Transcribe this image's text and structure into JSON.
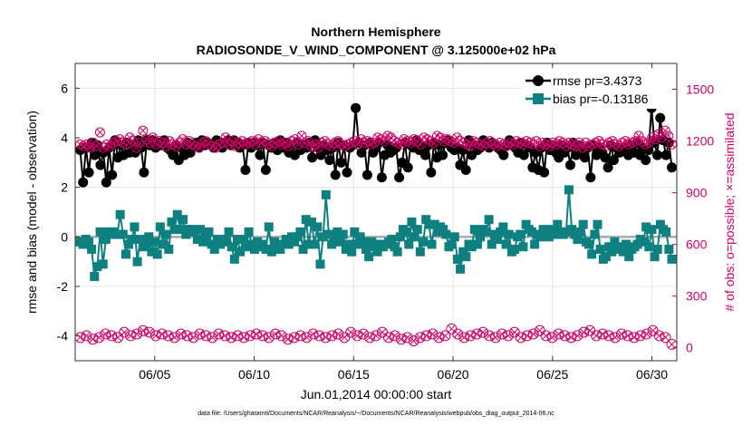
{
  "title_line1": "Northern Hemisphere",
  "title_line2": "RADIOSONDE_V_WIND_COMPONENT @ 3.125000e+02 hPa",
  "footer": "data file: /Users/gharamti/Documents/NCAR/Reanalysis/~/Documents/NCAR/Reanalysis/webpub/obs_diag_output_2014-06.nc",
  "chart_data": {
    "type": "line",
    "title": "Northern Hemisphere RADIOSONDE_V_WIND_COMPONENT @ 3.125000e+02 hPa",
    "xlabel": "Jun.01,2014 00:00:00 start",
    "ylabel": "rmse and bias (model - observation)",
    "ylabel_right": "# of obs: o=possible; ×=assimilated",
    "xlim": [
      1.0,
      31.25
    ],
    "ylim": [
      -5,
      7
    ],
    "ylim_right": [
      -75,
      1650
    ],
    "x_ticks": [
      5,
      10,
      15,
      20,
      25,
      30
    ],
    "x_tick_labels": [
      "06/05",
      "06/10",
      "06/15",
      "06/20",
      "06/25",
      "06/30"
    ],
    "y_ticks": [
      -4,
      -2,
      0,
      2,
      4,
      6
    ],
    "y_tick_labels": [
      "-4",
      "-2",
      "0",
      "2",
      "4",
      "6"
    ],
    "y2_ticks": [
      0,
      300,
      600,
      900,
      1200,
      1500
    ],
    "y2_tick_labels": [
      "0",
      "300",
      "600",
      "900",
      "1200",
      "1500"
    ],
    "zero_line": 0,
    "legend": [
      "rmse pr=3.4373",
      "bias pr=-0.13186"
    ],
    "colors": {
      "rmse": "#000000",
      "bias": "#0f8080",
      "obs": "#cc0066",
      "zero": "#aaaaaa"
    },
    "series": [
      {
        "name": "rmse",
        "values": [
          3.5,
          2.2,
          3.6,
          2.6,
          3.8,
          3.3,
          3.7,
          2.9,
          3.4,
          2.2,
          3.6,
          2.5,
          3.9,
          3.2,
          3.7,
          3.3,
          3.8,
          3.4,
          3.7,
          3.4,
          3.9,
          3.6,
          2.6,
          3.9,
          3.7,
          3.9,
          3.6,
          3.8,
          3.7,
          3.9,
          3.6,
          3.5,
          3.3,
          3.7,
          3.1,
          3.6,
          3.3,
          3.8,
          3.4,
          3.7,
          3.8,
          3.6,
          3.9,
          3.7,
          3.8,
          3.7,
          3.6,
          3.9,
          3.7,
          3.6,
          3.8,
          3.9,
          3.7,
          3.9,
          3.8,
          3.6,
          3.7,
          2.7,
          3.8,
          3.6,
          3.8,
          3.7,
          3.3,
          3.8,
          2.7,
          3.7,
          3.6,
          3.8,
          3.5,
          3.9,
          3.6,
          3.8,
          3.4,
          3.7,
          3.3,
          3.8,
          3.5,
          3.7,
          3.6,
          3.8,
          3.2,
          3.9,
          3.6,
          3.3,
          3.7,
          3.5,
          3.1,
          3.6,
          2.5,
          3.8,
          3.0,
          3.7,
          2.6,
          3.6,
          3.7,
          5.2,
          3.8,
          3.4,
          3.7,
          2.5,
          3.8,
          3.4,
          3.6,
          3.8,
          2.4,
          3.3,
          3.7,
          3.4,
          3.5,
          3.6,
          2.4,
          3.0,
          3.8,
          2.8,
          3.7,
          3.6,
          3.9,
          3.5,
          3.6,
          3.3,
          3.7,
          2.6,
          3.8,
          3.2,
          3.7,
          3.3,
          3.8,
          3.9,
          3.6,
          3.5,
          3.6,
          2.9,
          3.5,
          2.7,
          3.9,
          3.3,
          3.7,
          3.5,
          3.6,
          3.9,
          3.7,
          3.6,
          3.8,
          3.7,
          3.6,
          3.5,
          3.3,
          3.7,
          3.9,
          3.7,
          3.6,
          3.4,
          3.8,
          3.3,
          3.7,
          3.6,
          2.8,
          3.4,
          2.7,
          3.6,
          2.6,
          3.8,
          3.5,
          3.7,
          3.4,
          3.2,
          3.7,
          3.4,
          3.6,
          2.9,
          3.8,
          3.3,
          3.7,
          3.4,
          3.2,
          3.6,
          2.4,
          3.7,
          3.3,
          3.6,
          3.4,
          3.2,
          2.8,
          3.7,
          3.1,
          3.6,
          3.4,
          3.5,
          3.6,
          3.3,
          3.7,
          3.4,
          3.8,
          3.3,
          3.6,
          3.1,
          3.5,
          5.2,
          3.8,
          3.3,
          4.8,
          3.9,
          3.3,
          3.8,
          2.8
        ]
      },
      {
        "name": "bias",
        "values": [
          -0.2,
          -0.3,
          -0.1,
          -0.2,
          -0.5,
          -1.6,
          -1.2,
          0.2,
          -1.1,
          -0.1,
          0.2,
          0.1,
          0.2,
          0.1,
          0.9,
          0.1,
          -0.7,
          -0.3,
          -0.1,
          0.4,
          -1.0,
          -0.1,
          -0.4,
          -0.3,
          0.0,
          -0.6,
          -0.2,
          -0.7,
          0.4,
          -0.3,
          0.1,
          -0.5,
          0.6,
          0.3,
          0.9,
          0.3,
          0.7,
          0.1,
          0.3,
          0.3,
          0.2,
          -0.1,
          0.3,
          -0.2,
          0.0,
          0.2,
          -0.3,
          -0.5,
          -0.1,
          -0.3,
          -0.2,
          -0.1,
          0.2,
          -0.4,
          -0.9,
          -0.1,
          -0.6,
          -0.1,
          -0.4,
          0.2,
          -0.3,
          -0.5,
          -0.2,
          -0.4,
          -0.3,
          -0.5,
          0.4,
          -0.6,
          -0.2,
          -0.4,
          -0.5,
          -0.3,
          -0.1,
          -0.3,
          0.0,
          -0.2,
          0.0,
          0.2,
          -0.5,
          0.7,
          -0.3,
          0.6,
          -0.3,
          0.4,
          -1.1,
          0.0,
          1.7,
          0.1,
          -0.3,
          -0.1,
          0.2,
          -0.2,
          0.1,
          -0.5,
          -0.3,
          -0.6,
          0.2,
          -0.3,
          0.0,
          -0.2,
          -0.5,
          -0.8,
          -0.2,
          -0.4,
          -0.6,
          -0.3,
          -0.4,
          -0.3,
          -0.2,
          -0.1,
          -0.4,
          -0.6,
          0.0,
          0.3,
          0.2,
          -0.3,
          0.6,
          0.0,
          0.3,
          -0.6,
          -0.2,
          0.7,
          0.5,
          -0.3,
          0.5,
          0.2,
          0.4,
          0.3,
          0.1,
          -0.4,
          -0.3,
          0.0,
          -0.9,
          -1.3,
          -0.6,
          -0.8,
          -0.3,
          -0.4,
          0.3,
          -0.3,
          0.0,
          0.3,
          0.2,
          0.7,
          -0.3,
          0.1,
          -0.1,
          0.2,
          0.4,
          -0.3,
          0.1,
          -0.6,
          -0.5,
          0.0,
          0.1,
          -0.4,
          0.5,
          0.3,
          0.2,
          -0.3,
          0.1,
          0.0,
          0.3,
          0.2,
          0.0,
          0.3,
          0.1,
          0.5,
          0.2,
          0.1,
          0.2,
          1.9,
          0.3,
          0.1,
          -0.1,
          0.2,
          0.5,
          -0.2,
          -0.3,
          -0.7,
          0.1,
          0.5,
          -0.5,
          -0.9,
          -0.8,
          -0.4,
          -0.6,
          -0.2,
          -0.4,
          -0.5,
          -0.6,
          -0.3,
          -0.8,
          -0.5,
          -0.4,
          -0.3,
          -0.1,
          -0.2,
          0.4,
          -0.4,
          0.3,
          -0.8,
          -0.5,
          0.5,
          0.3,
          0.2,
          -0.5,
          -0.9
        ]
      },
      {
        "name": "obs_possible",
        "axis": "right",
        "values": [
          1180,
          1170,
          1180,
          1160,
          1190,
          1170,
          1250,
          1160,
          1180,
          1170,
          1190,
          1200,
          1210,
          1190,
          1180,
          1220,
          1200,
          1160,
          1190,
          1260,
          1210,
          1190,
          1220,
          1180,
          1200,
          1190,
          1170,
          1200,
          1180,
          1170,
          1190,
          1210,
          1180,
          1200,
          1180,
          1170,
          1160,
          1190,
          1200,
          1180,
          1170,
          1160,
          1180,
          1190,
          1220,
          1180,
          1200,
          1170,
          1190,
          1200,
          1180,
          1190,
          1200,
          1180,
          1210,
          1190,
          1200,
          1180,
          1170,
          1190,
          1200,
          1180,
          1190,
          1170,
          1200,
          1210,
          1180,
          1230,
          1190,
          1200,
          1170,
          1180,
          1160,
          1190,
          1200,
          1180,
          1170,
          1190,
          1200,
          1180,
          1170,
          1180,
          1190,
          1200,
          1180,
          1210,
          1190,
          1200,
          1180,
          1190,
          1220,
          1210,
          1200,
          1230,
          1220,
          1200,
          1190,
          1180,
          1210,
          1200,
          1190,
          1210,
          1200,
          1180,
          1220,
          1210,
          1200,
          1190,
          1230,
          1220,
          1200,
          1210,
          1200,
          1190,
          1220,
          1200,
          1190,
          1180,
          1170,
          1200,
          1190,
          1180,
          1170,
          1190,
          1200,
          1180,
          1170,
          1190,
          1180,
          1170,
          1190,
          1180,
          1200,
          1190,
          1180,
          1200,
          1190,
          1180,
          1200,
          1170,
          1190,
          1180,
          1170,
          1190,
          1180,
          1200,
          1190,
          1170,
          1190,
          1180,
          1170,
          1190,
          1160,
          1190,
          1170,
          1180,
          1190,
          1200,
          1180,
          1170,
          1190,
          1200,
          1180,
          1170,
          1190,
          1200,
          1180,
          1190,
          1200,
          1230,
          1200,
          1180,
          1190,
          1220,
          1210,
          1240,
          1220,
          1260,
          1230,
          1180
        ]
      },
      {
        "name": "obs_assimilated",
        "axis": "right",
        "values": [
          60,
          70,
          50,
          60,
          80,
          70,
          60,
          90,
          70,
          80,
          100,
          90,
          70,
          80,
          70,
          60,
          80,
          70,
          60,
          80,
          70,
          60,
          80,
          70,
          60,
          70,
          60,
          70,
          80,
          70,
          60,
          80,
          70,
          50,
          60,
          70,
          60,
          80,
          70,
          60,
          70,
          80,
          60,
          90,
          70,
          80,
          60,
          70,
          90,
          60,
          70,
          50,
          60,
          40,
          60,
          70,
          80,
          60,
          70,
          110,
          80,
          60,
          70,
          80,
          90,
          70,
          60,
          80,
          70,
          90,
          60,
          70,
          80,
          100,
          70,
          60,
          80,
          70,
          60,
          70,
          90,
          100,
          70,
          80,
          70,
          60,
          80,
          70,
          60,
          70,
          80,
          100,
          70,
          60,
          20
        ]
      }
    ]
  }
}
